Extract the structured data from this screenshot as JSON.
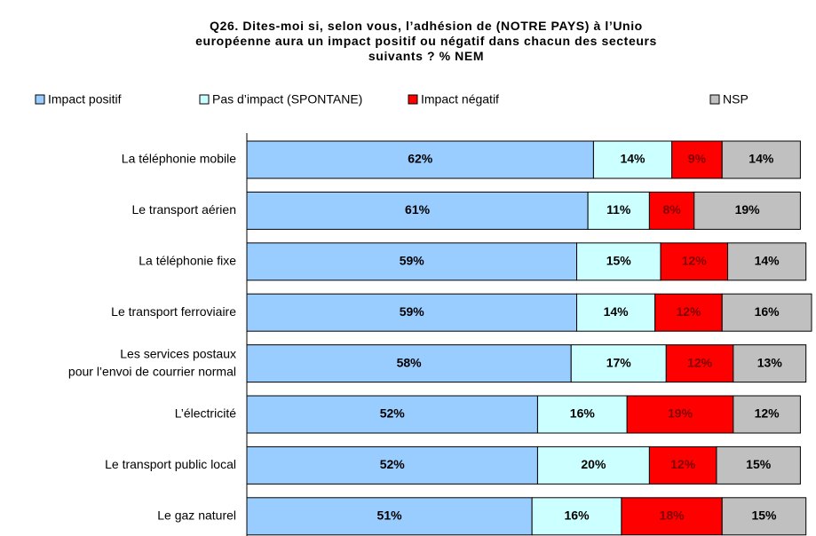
{
  "chart_data": {
    "type": "stacked_bar_horizontal",
    "title": "Q26. Dites-moi si, selon vous, l’adhésion de (NOTRE PAYS) à l’Unio\neuropéenne aura un impact positif ou négatif dans chacun des secteurs\nsuivants ? % NEM",
    "categories": [
      "La téléphonie mobile",
      "Le transport aérien",
      "La téléphonie fixe",
      "Le transport ferroviaire",
      "Les services postaux\npour l’envoi de courrier normal",
      "L’électricité",
      "Le transport public local",
      "Le gaz naturel"
    ],
    "series": [
      {
        "name": "Impact positif",
        "color": "#99ccff",
        "label_color": "#000000",
        "values": [
          62,
          61,
          59,
          59,
          58,
          52,
          52,
          51
        ],
        "value_labels": [
          "62%",
          "61%",
          "59%",
          "59%",
          "58%",
          "52%",
          "52%",
          "51%"
        ]
      },
      {
        "name": "Pas d’impact (SPONTANE)",
        "color": "#ccffff",
        "label_color": "#000000",
        "values": [
          14,
          11,
          15,
          14,
          17,
          16,
          20,
          16
        ],
        "value_labels": [
          "14%",
          "11%",
          "15%",
          "14%",
          "17%",
          "16%",
          "20%",
          "16%"
        ]
      },
      {
        "name": "Impact négatif",
        "color": "#ff0000",
        "label_color": "#800000",
        "values": [
          9,
          8,
          12,
          12,
          12,
          19,
          12,
          18
        ],
        "value_labels": [
          "9%",
          "8%",
          "12%",
          "12%",
          "12%",
          "19%",
          "12%",
          "18%"
        ]
      },
      {
        "name": "NSP",
        "color": "#c0c0c0",
        "label_color": "#000000",
        "values": [
          14,
          19,
          14,
          16,
          13,
          12,
          15,
          15
        ],
        "value_labels": [
          "14%",
          "19%",
          "14%",
          "16%",
          "13%",
          "12%",
          "15%",
          "15%"
        ]
      }
    ],
    "legend": "top"
  }
}
